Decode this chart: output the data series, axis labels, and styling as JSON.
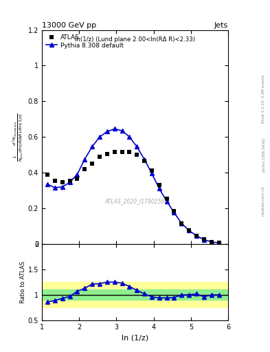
{
  "title_left": "13000 GeV pp",
  "title_right": "Jets",
  "right_label": "Rivet 3.1.10, 3.3M events",
  "arxiv_label": "[arXiv:1306.3436]",
  "mcplots_label": "mcplots.cern.ch",
  "atlas_label": "ATLAS_2020_I1790256",
  "inner_title": "ln(1/z) (Lund plane 2.00<ln(RΔ R)<2.33)",
  "xlabel": "ln (1/z)",
  "ylabel_ratio": "Ratio to ATLAS",
  "xlim": [
    1.0,
    6.0
  ],
  "ylim_main": [
    0.0,
    1.2
  ],
  "ylim_ratio": [
    0.5,
    2.0
  ],
  "atlas_x": [
    1.15,
    1.35,
    1.55,
    1.75,
    1.95,
    2.15,
    2.35,
    2.55,
    2.75,
    2.95,
    3.15,
    3.35,
    3.55,
    3.75,
    3.95,
    4.15,
    4.35,
    4.55,
    4.75,
    4.95,
    5.15,
    5.35,
    5.55,
    5.75
  ],
  "atlas_y": [
    0.39,
    0.355,
    0.345,
    0.355,
    0.365,
    0.42,
    0.45,
    0.49,
    0.505,
    0.515,
    0.515,
    0.515,
    0.5,
    0.465,
    0.41,
    0.33,
    0.255,
    0.185,
    0.115,
    0.075,
    0.045,
    0.025,
    0.012,
    0.005
  ],
  "pythia_x": [
    1.15,
    1.35,
    1.55,
    1.75,
    1.95,
    2.15,
    2.35,
    2.55,
    2.75,
    2.95,
    3.15,
    3.35,
    3.55,
    3.75,
    3.95,
    4.15,
    4.35,
    4.55,
    4.75,
    4.95,
    5.15,
    5.35,
    5.55,
    5.75
  ],
  "pythia_y": [
    0.335,
    0.315,
    0.32,
    0.345,
    0.39,
    0.475,
    0.545,
    0.6,
    0.63,
    0.645,
    0.635,
    0.6,
    0.545,
    0.475,
    0.395,
    0.31,
    0.24,
    0.175,
    0.115,
    0.075,
    0.046,
    0.024,
    0.012,
    0.005
  ],
  "ratio_x": [
    1.15,
    1.35,
    1.55,
    1.75,
    1.95,
    2.15,
    2.35,
    2.55,
    2.75,
    2.95,
    3.15,
    3.35,
    3.55,
    3.75,
    3.95,
    4.15,
    4.35,
    4.55,
    4.75,
    4.95,
    5.15,
    5.35,
    5.55,
    5.75
  ],
  "ratio_y": [
    0.86,
    0.89,
    0.93,
    0.97,
    1.07,
    1.13,
    1.21,
    1.22,
    1.25,
    1.25,
    1.23,
    1.165,
    1.09,
    1.02,
    0.96,
    0.94,
    0.94,
    0.945,
    1.0,
    1.0,
    1.02,
    0.96,
    1.0,
    1.0
  ],
  "band_green_lo": [
    0.9,
    0.9,
    0.9,
    0.9,
    0.9,
    0.9,
    0.9,
    0.9,
    0.9,
    0.9,
    0.9,
    0.9,
    0.9,
    0.9,
    0.9,
    0.9,
    0.9,
    0.9,
    0.9,
    0.9,
    0.9,
    0.9,
    0.9,
    0.9
  ],
  "band_green_hi": [
    1.1,
    1.1,
    1.1,
    1.1,
    1.1,
    1.1,
    1.1,
    1.1,
    1.1,
    1.1,
    1.1,
    1.1,
    1.1,
    1.1,
    1.1,
    1.1,
    1.1,
    1.1,
    1.1,
    1.1,
    1.1,
    1.1,
    1.1,
    1.1
  ],
  "band_yellow_lo": [
    0.75,
    0.75,
    0.75,
    0.75,
    0.75,
    0.75,
    0.75,
    0.75,
    0.75,
    0.75,
    0.75,
    0.75,
    0.75,
    0.75,
    0.75,
    0.75,
    0.75,
    0.75,
    0.75,
    0.75,
    0.75,
    0.75,
    0.75,
    0.75
  ],
  "band_yellow_hi": [
    1.25,
    1.25,
    1.25,
    1.25,
    1.25,
    1.25,
    1.25,
    1.25,
    1.25,
    1.25,
    1.25,
    1.25,
    1.25,
    1.25,
    1.25,
    1.25,
    1.25,
    1.25,
    1.25,
    1.25,
    1.25,
    1.25,
    1.25,
    1.25
  ],
  "color_pythia": "#0000cc",
  "color_atlas": "#000000",
  "color_green": "#90EE90",
  "color_yellow": "#FFFF99",
  "pythia_marker": "^",
  "atlas_marker": "s",
  "legend_atlas": "ATLAS",
  "legend_pythia": "Pythia 8.308 default"
}
